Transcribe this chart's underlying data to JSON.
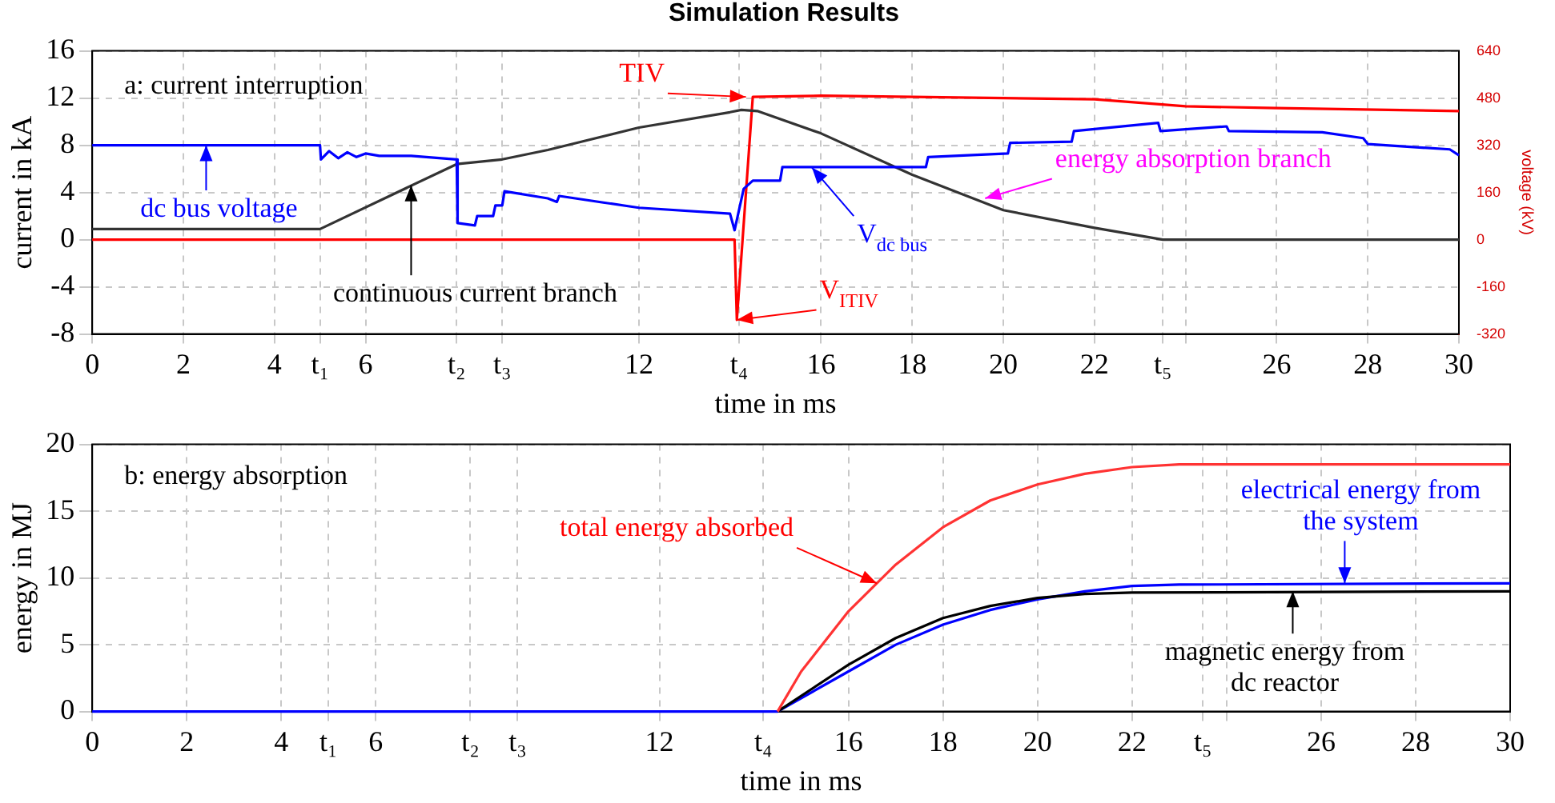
{
  "chart_data": [
    {
      "type": "line",
      "title": "Simulation Results",
      "xlabel": "time in ms",
      "ylabel": "current in kA",
      "y2label": "voltage (kV)",
      "xlim": [
        0,
        30
      ],
      "xticks": [
        0,
        2,
        4,
        {
          "value": 5,
          "label": "t₁"
        },
        6,
        {
          "value": 8,
          "label": "t₂"
        },
        {
          "value": 9,
          "label": "t₃"
        },
        12,
        {
          "value": 14.2,
          "label": "t₄"
        },
        16,
        18,
        20,
        22,
        {
          "value": 23.5,
          "label": "t₅"
        },
        {
          "value": 24,
          "label": null
        },
        26,
        28,
        30
      ],
      "ylim": [
        -8,
        16
      ],
      "yticks": [
        -8,
        -4,
        0,
        4,
        8,
        12,
        16
      ],
      "y2lim": [
        -320,
        640
      ],
      "y2ticks": [
        -320,
        -160,
        0,
        160,
        320,
        480,
        640
      ],
      "grid": true,
      "legend": false,
      "series": [
        {
          "color": "#0000ff",
          "axis": "y2",
          "x": [
            0,
            5,
            5.02,
            5.2,
            5.4,
            5.6,
            5.8,
            6.0,
            6.3,
            7,
            8,
            8.02,
            8.4,
            8.45,
            8.8,
            8.85,
            9.0,
            9.05,
            10,
            10.2,
            10.25,
            12,
            14,
            14.1,
            14.3,
            14.5,
            15.1,
            15.15,
            18.3,
            18.35,
            20.1,
            20.15,
            21.5,
            21.55,
            23.4,
            23.45,
            24.9,
            24.95,
            27,
            27.9,
            28,
            29.8,
            30
          ],
          "values": [
            320,
            320,
            272,
            300,
            276,
            296,
            280,
            292,
            284,
            284,
            272,
            56,
            48,
            80,
            80,
            116,
            116,
            164,
            140,
            128,
            148,
            108,
            88,
            32,
            172,
            200,
            200,
            246,
            246,
            280,
            292,
            328,
            332,
            368,
            396,
            368,
            384,
            368,
            364,
            344,
            324,
            306,
            286
          ]
        },
        {
          "color": "#333333",
          "x": [
            0,
            5,
            8,
            9,
            10,
            12,
            14,
            14.25,
            14.6,
            16,
            18,
            20,
            22,
            23.5,
            30
          ],
          "values": [
            0.9,
            0.9,
            6.4,
            6.8,
            7.6,
            9.5,
            10.8,
            11.0,
            10.9,
            9.0,
            5.5,
            2.5,
            1.0,
            0,
            0
          ]
        },
        {
          "color": "#ff0000",
          "axis": "y2",
          "x": [
            0,
            14.1,
            14.15,
            14.5,
            16,
            20,
            22,
            24,
            26,
            30
          ],
          "values": [
            0,
            0,
            -272,
            484,
            488,
            480,
            476,
            452,
            446,
            436
          ]
        }
      ],
      "annotations": [
        "a: current interruption",
        {
          "text": "dc bus voltage",
          "x": 2.5,
          "y": 8
        },
        {
          "text": "continuous current branch",
          "x": 7.0,
          "y": 4.6
        },
        {
          "text": "TIV",
          "x": 14.35,
          "y": 12.1
        },
        {
          "text": "V$_{ITIV}$",
          "x": 14.15,
          "y": -6.8
        },
        {
          "text": "V$_{dc bus}$",
          "x": 15.8,
          "y": 6.1
        },
        {
          "text": "energy absorption branch",
          "x": 19.6,
          "y": 3.5
        }
      ]
    },
    {
      "type": "line",
      "xlabel": "time in ms",
      "ylabel": "energy in MJ",
      "xlim": [
        0,
        30
      ],
      "xticks": [
        0,
        2,
        4,
        {
          "value": 5,
          "label": "t₁"
        },
        6,
        {
          "value": 8,
          "label": "t₂"
        },
        {
          "value": 9,
          "label": "t₃"
        },
        12,
        {
          "value": 14.2,
          "label": "t₄"
        },
        16,
        18,
        20,
        22,
        {
          "value": 23.5,
          "label": "t₅"
        },
        {
          "value": 24,
          "label": null
        },
        26,
        28,
        30
      ],
      "ylim": [
        0,
        20
      ],
      "yticks": [
        0,
        5,
        10,
        15,
        20
      ],
      "grid": true,
      "legend": false,
      "series": [
        {
          "color": "#ff3333",
          "x": [
            14.5,
            15,
            16,
            17,
            18,
            19,
            20,
            21,
            22,
            23,
            30
          ],
          "values": [
            0,
            3,
            7.5,
            11,
            13.8,
            15.8,
            17,
            17.8,
            18.3,
            18.5,
            18.5
          ]
        },
        {
          "color": "#000000",
          "x": [
            14.5,
            16,
            17,
            18,
            19,
            20,
            21,
            22,
            30
          ],
          "values": [
            0,
            3.5,
            5.5,
            7,
            7.9,
            8.5,
            8.8,
            8.9,
            9
          ]
        },
        {
          "color": "#0000ff",
          "x": [
            0,
            14.5,
            16,
            17,
            18,
            19,
            20,
            21,
            22,
            23,
            30
          ],
          "values": [
            0,
            0,
            3,
            5,
            6.5,
            7.6,
            8.4,
            9,
            9.4,
            9.5,
            9.6
          ]
        }
      ],
      "annotations": [
        "b: energy absorption",
        {
          "text": "total energy absorbed",
          "x": 16.6,
          "y": 9.6
        },
        {
          "text": "electrical energy from the system",
          "x": 26.5,
          "y": 9.6
        },
        {
          "text": "magnetic energy from dc reactor",
          "x": 25.4,
          "y": 9.0
        }
      ]
    }
  ]
}
